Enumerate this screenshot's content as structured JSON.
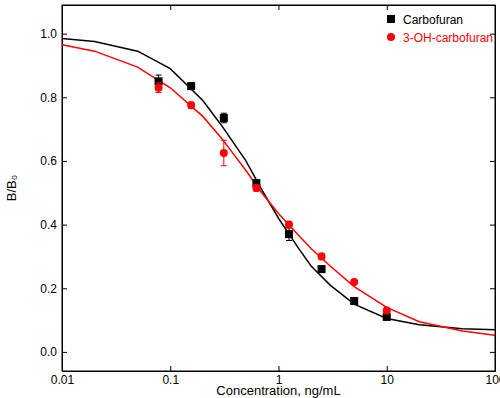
{
  "chart_data": {
    "type": "scatter",
    "xlabel": "Concentration, ng/mL",
    "ylabel": "B/B₀",
    "log": "x",
    "grid": false,
    "legend": "upper right",
    "xlim": [
      0.01,
      100
    ],
    "xticks": [
      0.01,
      0.1,
      1,
      10,
      100
    ],
    "ylim": [
      -0.06,
      1.09
    ],
    "yticks": [
      {
        "value": 0.0,
        "label": "0.0"
      },
      {
        "value": 0.2,
        "label": "0.2"
      },
      {
        "value": 0.4,
        "label": "0.4"
      },
      {
        "value": 0.6,
        "label": "0.6"
      },
      {
        "value": 0.8,
        "label": "0.8"
      },
      {
        "value": 1.0,
        "label": "1.0"
      }
    ],
    "series": [
      {
        "name": "Carbofuran",
        "type": "scatter",
        "color": "#000000",
        "marker": "square",
        "x": [
          0.078,
          0.156,
          0.3125,
          0.625,
          1.25,
          2.5,
          5,
          10
        ],
        "values": [
          0.85,
          0.835,
          0.735,
          0.53,
          0.37,
          0.26,
          0.16,
          0.11
        ],
        "errors": [
          0.02,
          0.01,
          0.015,
          0.01,
          0.02,
          0.01,
          0.01,
          0.01
        ]
      },
      {
        "name": "3-OH-carbofuran",
        "type": "scatter",
        "color": "#ff0000",
        "marker": "circle",
        "x": [
          0.078,
          0.156,
          0.3125,
          0.625,
          1.25,
          2.5,
          5,
          10
        ],
        "values": [
          0.83,
          0.775,
          0.625,
          0.515,
          0.4,
          0.3,
          0.22,
          0.13
        ],
        "errors": [
          0.015,
          0.01,
          0.04,
          0.01,
          0.01,
          0.01,
          0.005,
          0.01
        ]
      },
      {
        "type": "line",
        "color": "#000000",
        "line_style": "solid",
        "x": [
          0.01,
          0.02,
          0.05,
          0.1,
          0.2,
          0.3,
          0.5,
          0.7,
          1,
          1.5,
          2,
          3,
          5,
          10,
          20,
          50,
          100
        ],
        "values": [
          0.985,
          0.975,
          0.945,
          0.89,
          0.79,
          0.71,
          0.6,
          0.51,
          0.42,
          0.33,
          0.27,
          0.21,
          0.15,
          0.105,
          0.085,
          0.073,
          0.07
        ]
      },
      {
        "type": "line",
        "color": "#ff0000",
        "line_style": "solid",
        "x": [
          0.01,
          0.02,
          0.05,
          0.1,
          0.2,
          0.3,
          0.5,
          0.7,
          1,
          1.5,
          2,
          3,
          5,
          10,
          20,
          50,
          100
        ],
        "values": [
          0.965,
          0.945,
          0.895,
          0.83,
          0.74,
          0.67,
          0.57,
          0.5,
          0.435,
          0.37,
          0.325,
          0.27,
          0.205,
          0.14,
          0.095,
          0.066,
          0.052
        ]
      }
    ]
  }
}
